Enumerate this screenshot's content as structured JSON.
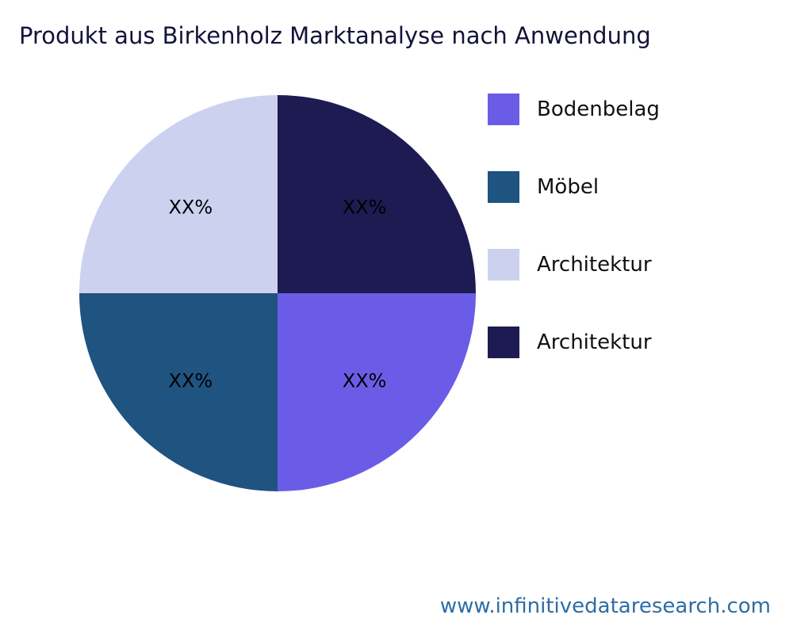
{
  "title": "Produkt aus Birkenholz Marktanalyse nach Anwendung",
  "watermark": "www.infinitivedataresearch.com",
  "chart_data": {
    "type": "pie",
    "title": "Produkt aus Birkenholz Marktanalyse nach Anwendung",
    "start_angle_deg": 90,
    "direction": "clockwise",
    "legend_position": "right",
    "slices": [
      {
        "name": "Architektur",
        "value": 25,
        "label": "XX%",
        "color": "#1e1b52"
      },
      {
        "name": "Bodenbelag",
        "value": 25,
        "label": "XX%",
        "color": "#6b5ce7"
      },
      {
        "name": "Möbel",
        "value": 25,
        "label": "XX%",
        "color": "#1f5380"
      },
      {
        "name": "Architektur",
        "value": 25,
        "label": "XX%",
        "color": "#cdd1f0"
      }
    ]
  },
  "legend": {
    "items": [
      {
        "label": "Bodenbelag",
        "color": "#6b5ce7"
      },
      {
        "label": "Möbel",
        "color": "#1f5380"
      },
      {
        "label": "Architektur",
        "color": "#cdd1f0"
      },
      {
        "label": "Architektur",
        "color": "#1e1b52"
      }
    ]
  },
  "colors": {
    "title_text": "#131339",
    "slice_label_text": "#000000",
    "watermark_text": "#2e6da4",
    "background": "#ffffff"
  }
}
